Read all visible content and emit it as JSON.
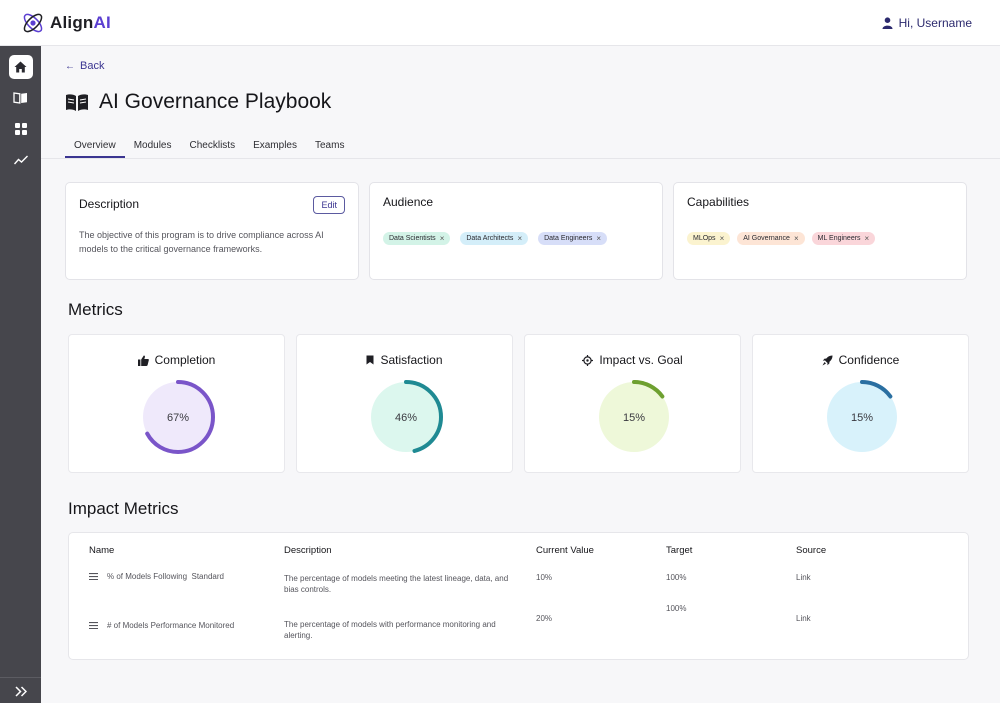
{
  "brand": {
    "name_part1": "Align",
    "name_part2": "AI"
  },
  "header": {
    "greeting": "Hi, Username"
  },
  "sidebar": {
    "items": [
      {
        "name": "home",
        "icon": "home-icon",
        "active": true
      },
      {
        "name": "playbooks",
        "icon": "book-icon",
        "active": false
      },
      {
        "name": "dashboard",
        "icon": "grid-icon",
        "active": false
      },
      {
        "name": "analytics",
        "icon": "trend-icon",
        "active": false
      }
    ],
    "expand_icon": "double-chevron-right-icon"
  },
  "page": {
    "back_label": "Back",
    "title": "AI Governance Playbook"
  },
  "tabs": [
    {
      "label": "Overview",
      "active": true
    },
    {
      "label": "Modules",
      "active": false
    },
    {
      "label": "Checklists",
      "active": false
    },
    {
      "label": "Examples",
      "active": false
    },
    {
      "label": "Teams",
      "active": false
    }
  ],
  "description": {
    "title": "Description",
    "edit_label": "Edit",
    "text": "The objective of this program is to drive compliance across AI models to the critical governance frameworks."
  },
  "audience": {
    "title": "Audience",
    "chips": [
      {
        "label": "Data Scientists",
        "color": "#d3f3e7"
      },
      {
        "label": "Data Architects",
        "color": "#d4eef9"
      },
      {
        "label": "Data Engineers",
        "color": "#d7def8"
      }
    ]
  },
  "capabilities": {
    "title": "Capabilities",
    "chips": [
      {
        "label": "MLOps",
        "color": "#fbf3cf"
      },
      {
        "label": "AI Governance",
        "color": "#fde5d6"
      },
      {
        "label": "ML Engineers",
        "color": "#fad6da"
      }
    ]
  },
  "metrics": {
    "title": "Metrics",
    "items": [
      {
        "label": "Completion",
        "icon": "thumbs-up-icon",
        "value_text": "67%",
        "fraction": 0.67,
        "fill": "#efe9fb",
        "stroke": "#7a55c9"
      },
      {
        "label": "Satisfaction",
        "icon": "bookmark-icon",
        "value_text": "46%",
        "fraction": 0.46,
        "fill": "#dcf7ee",
        "stroke": "#1f8a93"
      },
      {
        "label": "Impact vs. Goal",
        "icon": "target-icon",
        "value_text": "15%",
        "fraction": 0.15,
        "fill": "#eef8d9",
        "stroke": "#6ea030"
      },
      {
        "label": "Confidence",
        "icon": "rocket-icon",
        "value_text": "15%",
        "fraction": 0.15,
        "fill": "#d8f2fb",
        "stroke": "#2a6fa1"
      }
    ]
  },
  "impact": {
    "title": "Impact Metrics",
    "columns": {
      "name": "Name",
      "description": "Description",
      "current": "Current Value",
      "target": "Target",
      "source": "Source"
    },
    "rows": [
      {
        "name": "% of Models Following  Standard",
        "description": "The percentage of models meeting the latest lineage, data, and bias controls.",
        "current": "10%",
        "target": "100%",
        "source": "Link"
      },
      {
        "name": "# of Models Performance Monitored",
        "description": "The percentage of models with performance monitoring and alerting.",
        "current": "20%",
        "target": "100%",
        "source": "Link"
      }
    ]
  }
}
